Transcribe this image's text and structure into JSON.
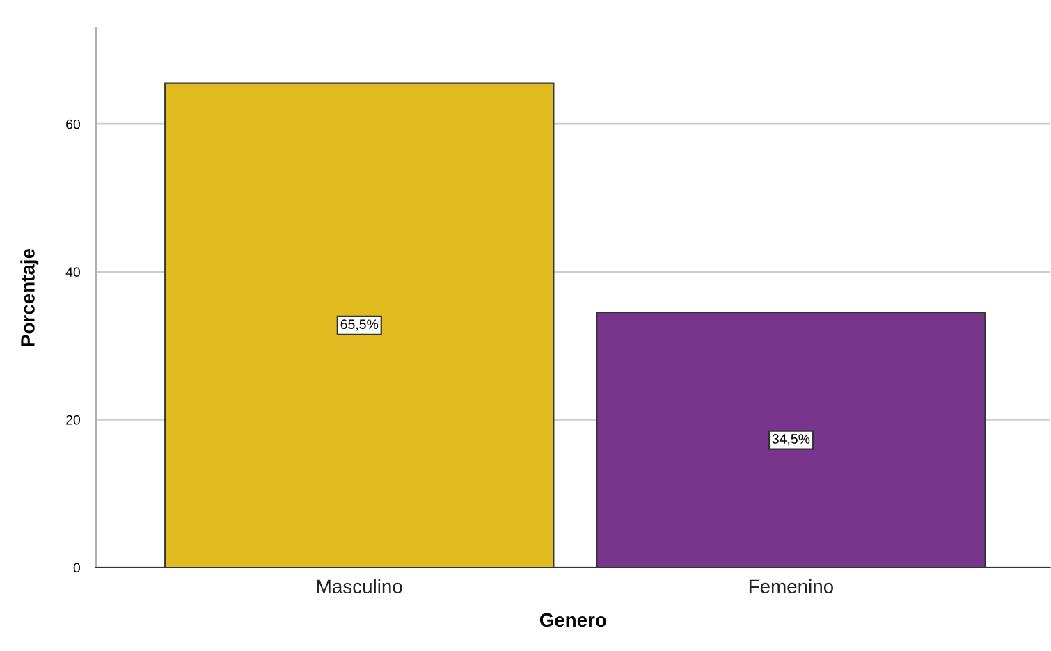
{
  "chart_data": {
    "type": "bar",
    "categories": [
      "Masculino",
      "Femenino"
    ],
    "values": [
      65.5,
      34.5
    ],
    "colors": [
      "#e0bb1f",
      "#77368b"
    ],
    "value_labels": [
      "65,5%",
      "34,5%"
    ],
    "xlabel": "Genero",
    "ylabel": "Porcentaje",
    "ylim": [
      0,
      73
    ],
    "yticks": [
      0,
      20,
      40,
      60
    ],
    "grid": "y"
  }
}
